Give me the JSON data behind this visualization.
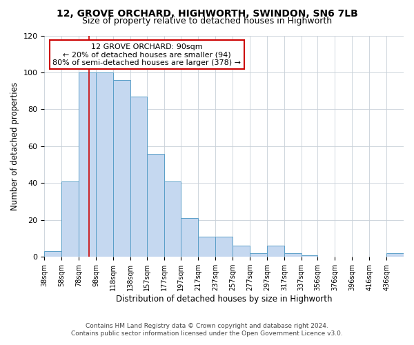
{
  "title1": "12, GROVE ORCHARD, HIGHWORTH, SWINDON, SN6 7LB",
  "title2": "Size of property relative to detached houses in Highworth",
  "xlabel": "Distribution of detached houses by size in Highworth",
  "ylabel": "Number of detached properties",
  "footer1": "Contains HM Land Registry data © Crown copyright and database right 2024.",
  "footer2": "Contains public sector information licensed under the Open Government Licence v3.0.",
  "bin_labels": [
    "38sqm",
    "58sqm",
    "78sqm",
    "98sqm",
    "118sqm",
    "138sqm",
    "157sqm",
    "177sqm",
    "197sqm",
    "217sqm",
    "237sqm",
    "257sqm",
    "277sqm",
    "297sqm",
    "317sqm",
    "337sqm",
    "356sqm",
    "376sqm",
    "396sqm",
    "416sqm",
    "436sqm"
  ],
  "bin_edges": [
    38,
    58,
    78,
    98,
    118,
    138,
    157,
    177,
    197,
    217,
    237,
    257,
    277,
    297,
    317,
    337,
    356,
    376,
    396,
    416,
    436
  ],
  "bar_heights": [
    3,
    41,
    100,
    100,
    96,
    87,
    56,
    41,
    21,
    11,
    11,
    6,
    2,
    6,
    2,
    1,
    0,
    0,
    0,
    0,
    2
  ],
  "bar_color": "#c5d8f0",
  "bar_edge_color": "#5a9fc8",
  "red_line_x": 90,
  "annotation_text1": "12 GROVE ORCHARD: 90sqm",
  "annotation_text2": "← 20% of detached houses are smaller (94)",
  "annotation_text3": "80% of semi-detached houses are larger (378) →",
  "annotation_box_color": "#ffffff",
  "annotation_box_edge": "#cc0000",
  "red_line_color": "#cc0000",
  "ylim": [
    0,
    120
  ],
  "yticks": [
    0,
    20,
    40,
    60,
    80,
    100,
    120
  ],
  "background_color": "#ffffff",
  "grid_color": "#c8d0d8"
}
